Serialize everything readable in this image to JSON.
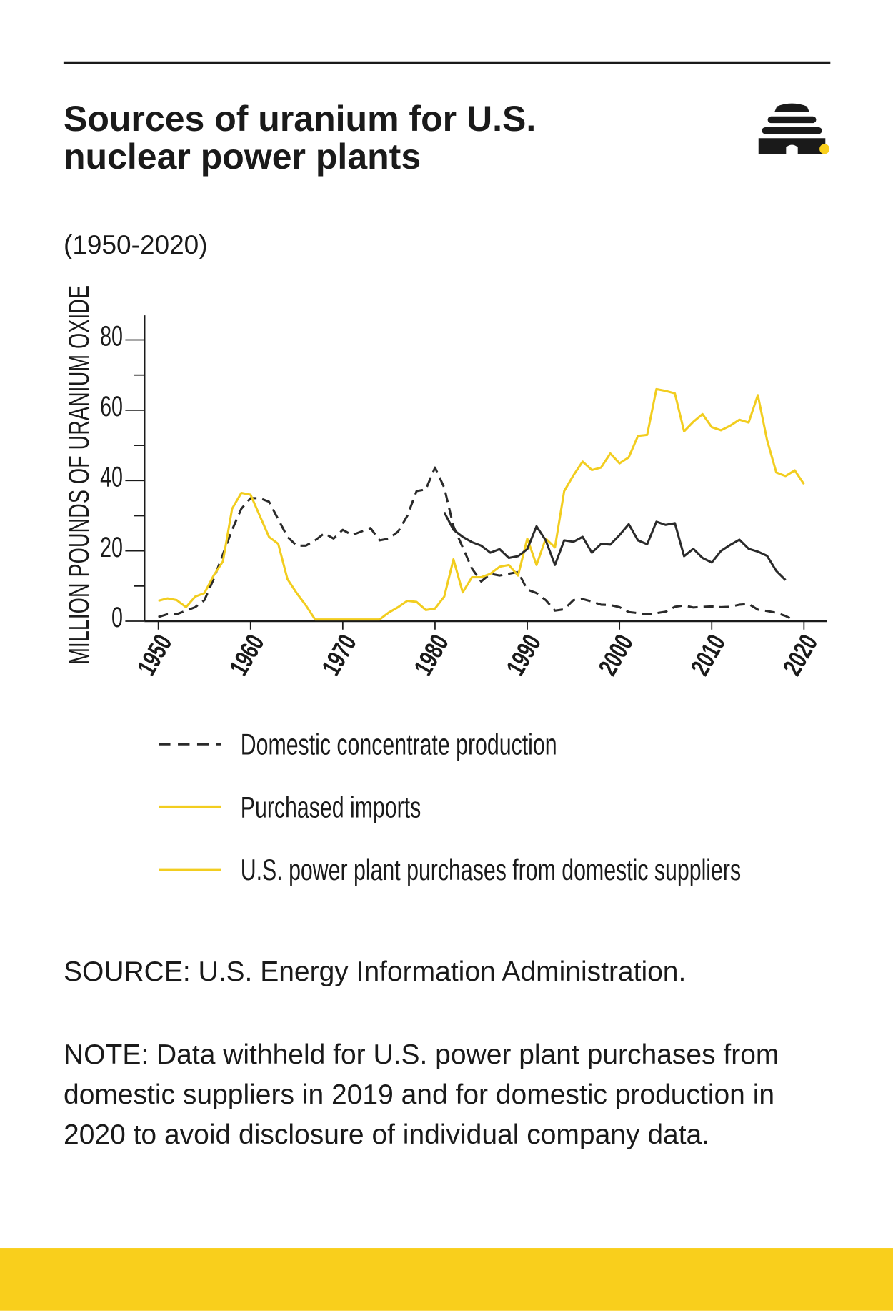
{
  "chart_data": {
    "type": "line",
    "title": "Sources of uranium for U.S. nuclear power plants",
    "subtitle": "(1950-2020)",
    "y_label": "MILLION POUNDS OF URANIUM OXIDE",
    "source": "SOURCE: U.S. Energy Information Administration.",
    "note": "NOTE: Data withheld for U.S. power plant purchases from domestic suppliers in 2019 and for domestic production in 2020 to avoid disclosure of individual company data.",
    "x": [
      1950,
      1951,
      1952,
      1953,
      1954,
      1955,
      1956,
      1957,
      1958,
      1959,
      1960,
      1961,
      1962,
      1963,
      1964,
      1965,
      1966,
      1967,
      1968,
      1969,
      1970,
      1971,
      1972,
      1973,
      1974,
      1975,
      1976,
      1977,
      1978,
      1979,
      1980,
      1981,
      1982,
      1983,
      1984,
      1985,
      1986,
      1987,
      1988,
      1989,
      1990,
      1991,
      1992,
      1993,
      1994,
      1995,
      1996,
      1997,
      1998,
      1999,
      2000,
      2001,
      2002,
      2003,
      2004,
      2005,
      2006,
      2007,
      2008,
      2009,
      2010,
      2011,
      2012,
      2013,
      2014,
      2015,
      2016,
      2017,
      2018,
      2019,
      2020
    ],
    "series": [
      {
        "name": "Domestic concentrate production",
        "color": "#2a2a2a",
        "legend_color": "#2a2a2a",
        "dashed": true,
        "values": [
          1.2,
          2,
          2,
          3,
          4,
          6,
          12,
          19,
          26,
          32,
          35,
          35,
          34,
          29,
          24,
          21.5,
          21.5,
          23,
          25,
          23.5,
          26,
          24.5,
          25.5,
          26.5,
          23,
          23.5,
          25.5,
          30,
          37,
          37.5,
          43.7,
          38,
          27,
          21,
          15,
          11.3,
          13.5,
          13,
          13.5,
          14,
          9,
          8,
          6,
          3,
          3.4,
          6,
          6.3,
          5.6,
          4.7,
          4.6,
          4,
          2.6,
          2.3,
          2,
          2.3,
          2.7,
          4.1,
          4.5,
          3.9,
          4.1,
          4.2,
          4,
          4.1,
          4.7,
          4.9,
          3.3,
          2.9,
          2.4,
          1.5,
          0.2,
          null
        ]
      },
      {
        "name": "Purchased imports",
        "color": "#f2cd1f",
        "legend_color": "#f2cd1f",
        "dashed": false,
        "values": [
          5.8,
          6.5,
          6,
          4,
          7,
          8,
          13,
          17,
          32,
          36.5,
          36,
          30,
          24,
          22,
          12,
          8,
          4.5,
          0.5,
          0.5,
          0.5,
          0.5,
          0.5,
          0.5,
          0.5,
          0.5,
          2.5,
          4,
          5.8,
          5.5,
          3.2,
          3.6,
          7,
          17.6,
          8.2,
          12.5,
          12.5,
          13.5,
          15.5,
          16,
          13,
          23.5,
          16,
          23.5,
          21,
          37,
          41.5,
          45.4,
          43,
          43.7,
          47.7,
          44.9,
          46.6,
          52.7,
          53,
          66,
          65.5,
          64.8,
          54,
          56.7,
          58.9,
          55.2,
          54.3,
          55.6,
          57.3,
          56.5,
          64.3,
          51.5,
          42.3,
          41.3,
          42.9,
          39
        ]
      },
      {
        "name": "U.S. power plant purchases from domestic suppliers",
        "color": "#2a2a2a",
        "legend_color": "#f2cd1f",
        "dashed": false,
        "values": [
          null,
          null,
          null,
          null,
          null,
          null,
          null,
          null,
          null,
          null,
          null,
          null,
          null,
          null,
          null,
          null,
          null,
          null,
          null,
          null,
          null,
          null,
          null,
          null,
          null,
          null,
          null,
          null,
          null,
          null,
          null,
          31,
          26,
          24,
          22.5,
          21.5,
          19.5,
          20.5,
          18,
          18.5,
          20.5,
          27,
          23,
          16,
          23,
          22.6,
          24,
          19.5,
          22,
          21.8,
          24.5,
          27.6,
          23,
          21.9,
          28.3,
          27.4,
          27.9,
          18.5,
          20.6,
          18,
          16.7,
          20,
          21.7,
          23.2,
          20.6,
          19.8,
          18.6,
          14.3,
          11.7,
          null,
          null
        ]
      }
    ],
    "xlim": [
      1948.5,
      2022.5
    ],
    "xticks": [
      1950,
      1960,
      1970,
      1980,
      1990,
      2000,
      2010,
      2020
    ],
    "ylim": [
      0,
      87
    ],
    "yticks": [
      0,
      20,
      40,
      60,
      80
    ],
    "yminor_ticks": [
      10,
      30,
      50,
      70
    ],
    "band_color": "#f9cf1c"
  }
}
